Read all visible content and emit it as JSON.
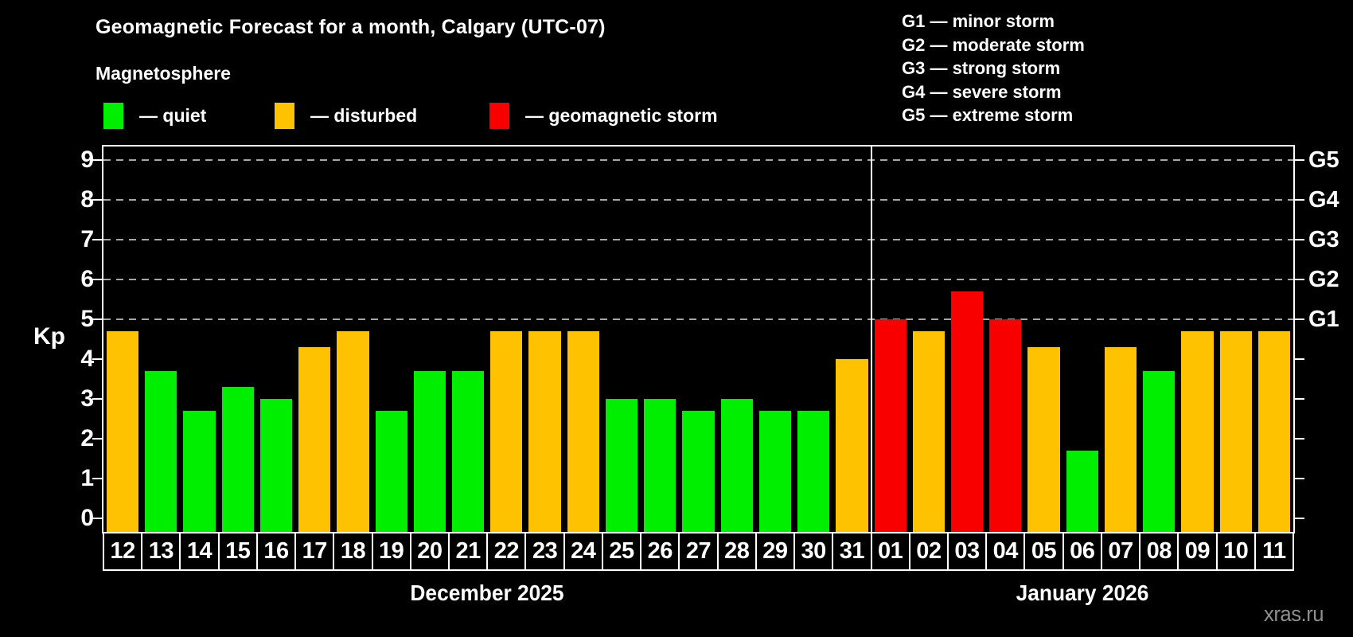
{
  "title": "Geomagnetic Forecast for a month, Calgary (UTC-07)",
  "subtitle": "Magnetosphere",
  "legend": {
    "items": [
      {
        "key": "quiet",
        "label": "— quiet",
        "color": "#00ef00"
      },
      {
        "key": "disturbed",
        "label": "— disturbed",
        "color": "#ffc200"
      },
      {
        "key": "storm",
        "label": "— geomagnetic storm",
        "color": "#f80000"
      }
    ]
  },
  "storm_scale_legend": [
    "G1 — minor storm",
    "G2 — moderate storm",
    "G3 — strong storm",
    "G4 — severe storm",
    "G5 — extreme storm"
  ],
  "watermark": "xras.ru",
  "chart_data": {
    "type": "bar",
    "ylabel": "Kp",
    "ylim": [
      0,
      9.5
    ],
    "y_ticks": [
      0,
      1,
      2,
      3,
      4,
      5,
      6,
      7,
      8,
      9
    ],
    "gridlines_kp": [
      5,
      6,
      7,
      8,
      9
    ],
    "grid": "horizontal dashed lines at storm levels G1–G5",
    "legend_position": "top",
    "right_axis": [
      {
        "label": "G1",
        "kp": 5
      },
      {
        "label": "G2",
        "kp": 6
      },
      {
        "label": "G3",
        "kp": 7
      },
      {
        "label": "G4",
        "kp": 8
      },
      {
        "label": "G5",
        "kp": 9
      }
    ],
    "months": [
      {
        "label": "December 2025",
        "days": 20
      },
      {
        "label": "January 2026",
        "days": 11
      }
    ],
    "bars": [
      {
        "day": "12",
        "kp": 4.7,
        "level": "disturbed"
      },
      {
        "day": "13",
        "kp": 3.7,
        "level": "quiet"
      },
      {
        "day": "14",
        "kp": 2.7,
        "level": "quiet"
      },
      {
        "day": "15",
        "kp": 3.3,
        "level": "quiet"
      },
      {
        "day": "16",
        "kp": 3.0,
        "level": "quiet"
      },
      {
        "day": "17",
        "kp": 4.3,
        "level": "disturbed"
      },
      {
        "day": "18",
        "kp": 4.7,
        "level": "disturbed"
      },
      {
        "day": "19",
        "kp": 2.7,
        "level": "quiet"
      },
      {
        "day": "20",
        "kp": 3.7,
        "level": "quiet"
      },
      {
        "day": "21",
        "kp": 3.7,
        "level": "quiet"
      },
      {
        "day": "22",
        "kp": 4.7,
        "level": "disturbed"
      },
      {
        "day": "23",
        "kp": 4.7,
        "level": "disturbed"
      },
      {
        "day": "24",
        "kp": 4.7,
        "level": "disturbed"
      },
      {
        "day": "25",
        "kp": 3.0,
        "level": "quiet"
      },
      {
        "day": "26",
        "kp": 3.0,
        "level": "quiet"
      },
      {
        "day": "27",
        "kp": 2.7,
        "level": "quiet"
      },
      {
        "day": "28",
        "kp": 3.0,
        "level": "quiet"
      },
      {
        "day": "29",
        "kp": 2.7,
        "level": "quiet"
      },
      {
        "day": "30",
        "kp": 2.7,
        "level": "quiet"
      },
      {
        "day": "31",
        "kp": 4.0,
        "level": "disturbed"
      },
      {
        "day": "01",
        "kp": 5.0,
        "level": "storm"
      },
      {
        "day": "02",
        "kp": 4.7,
        "level": "disturbed"
      },
      {
        "day": "03",
        "kp": 5.7,
        "level": "storm"
      },
      {
        "day": "04",
        "kp": 5.0,
        "level": "storm"
      },
      {
        "day": "05",
        "kp": 4.3,
        "level": "disturbed"
      },
      {
        "day": "06",
        "kp": 1.7,
        "level": "quiet"
      },
      {
        "day": "07",
        "kp": 4.3,
        "level": "disturbed"
      },
      {
        "day": "08",
        "kp": 3.7,
        "level": "quiet"
      },
      {
        "day": "09",
        "kp": 4.7,
        "level": "disturbed"
      },
      {
        "day": "10",
        "kp": 4.7,
        "level": "disturbed"
      },
      {
        "day": "11",
        "kp": 4.7,
        "level": "disturbed"
      }
    ]
  }
}
